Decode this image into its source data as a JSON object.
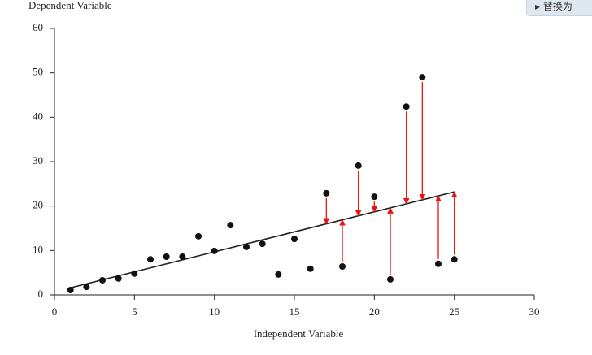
{
  "chart_data": {
    "type": "scatter",
    "x_label": "Independent Variable",
    "y_label": "Dependent Variable",
    "xlim": [
      0,
      30
    ],
    "ylim": [
      0,
      60
    ],
    "xticks": [
      0,
      5,
      10,
      15,
      20,
      25,
      30
    ],
    "yticks": [
      0,
      10,
      20,
      30,
      40,
      50,
      60
    ],
    "color": "#111111",
    "x": [
      1,
      2,
      3,
      4,
      5,
      6,
      7,
      8,
      9,
      10,
      11,
      12,
      13,
      14,
      15,
      16,
      17,
      18,
      19,
      20,
      21,
      22,
      23,
      24,
      25
    ],
    "y": [
      1.1,
      1.8,
      3.3,
      3.7,
      4.8,
      8.0,
      8.6,
      8.6,
      13.2,
      9.9,
      15.7,
      10.8,
      11.5,
      4.6,
      12.6,
      5.9,
      22.9,
      6.4,
      29.1,
      22.1,
      3.5,
      42.4,
      49.0,
      7.0,
      8.0
    ],
    "fit_line": {
      "x": [
        1,
        25
      ],
      "y": [
        1.6,
        23.2
      ],
      "color": "#222222"
    },
    "residual_arrows": {
      "points": [
        16,
        17,
        18,
        19,
        20,
        21,
        22,
        23,
        24
      ],
      "color": "#ee1111"
    }
  },
  "ui": {
    "button": "▸ 替换为"
  }
}
